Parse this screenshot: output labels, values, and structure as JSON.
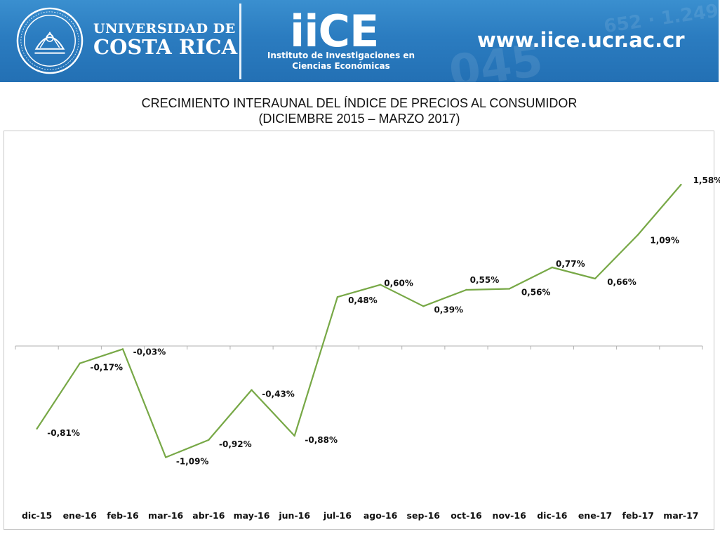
{
  "header": {
    "university_line1": "UNIVERSIDAD DE",
    "university_line2": "COSTA RICA",
    "institute_logo": "iiCE",
    "institute_name_line1": "Instituto de Investigaciones en",
    "institute_name_line2": "Ciencias Económicas",
    "website": "www.iice.ucr.ac.cr",
    "seal_icon": "university-seal-icon",
    "brand_color": "#2b7cc0"
  },
  "chart_data": {
    "type": "line",
    "title": "CRECIMIENTO INTERAUNAL DEL ÍNDICE DE PRECIOS AL CONSUMIDOR",
    "subtitle": "(DICIEMBRE 2015 – MARZO 2017)",
    "xlabel": "",
    "ylabel": "",
    "categories": [
      "dic-15",
      "ene-16",
      "feb-16",
      "mar-16",
      "abr-16",
      "may-16",
      "jun-16",
      "jul-16",
      "ago-16",
      "sep-16",
      "oct-16",
      "nov-16",
      "dic-16",
      "ene-17",
      "feb-17",
      "mar-17"
    ],
    "series": [
      {
        "values": [
          -0.81,
          -0.17,
          -0.03,
          -1.09,
          -0.92,
          -0.43,
          -0.88,
          0.48,
          0.6,
          0.39,
          0.55,
          0.56,
          0.77,
          0.66,
          1.09,
          1.58
        ],
        "labels": [
          "-0,81%",
          "-0,17%",
          "-0,03%",
          "-1,09%",
          "-0,92%",
          "-0,43%",
          "-0,88%",
          "0,48%",
          "0,60%",
          "0,39%",
          "0,55%",
          "0,56%",
          "0,77%",
          "0,66%",
          "1,09%",
          "1,58%"
        ],
        "color": "#77a846"
      }
    ],
    "ylim": [
      -1.3,
      1.8
    ],
    "grid": false,
    "legend": "none",
    "axis_color": "#b0b0b0"
  }
}
